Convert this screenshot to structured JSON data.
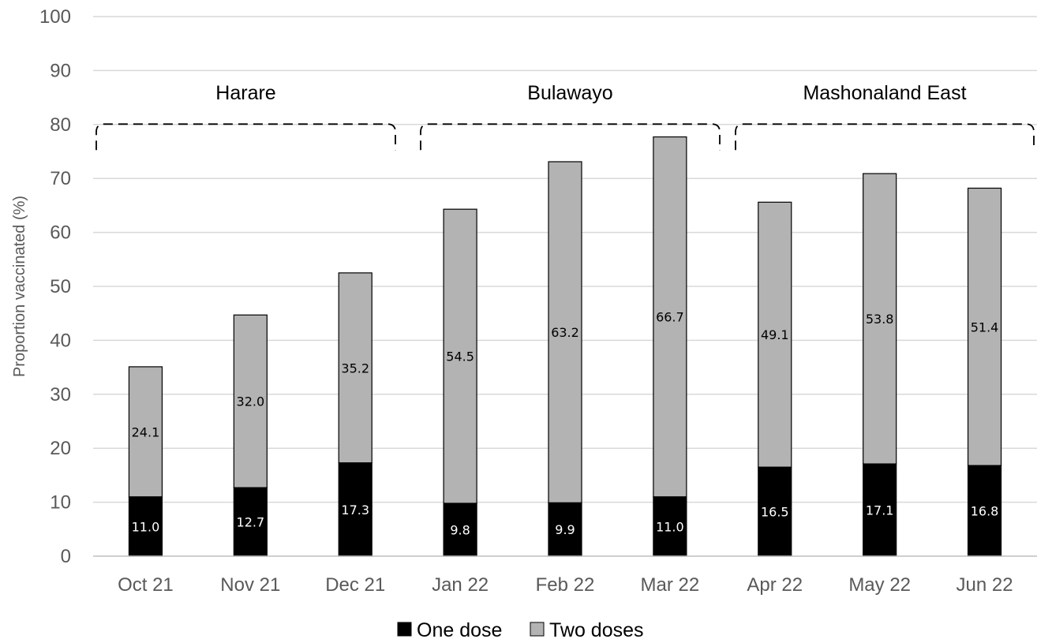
{
  "chart_data": {
    "type": "bar",
    "stacked": true,
    "categories": [
      "Oct 21",
      "Nov 21",
      "Dec 21",
      "Jan 22",
      "Feb 22",
      "Mar 22",
      "Apr 22",
      "May 22",
      "Jun 22"
    ],
    "series": [
      {
        "name": "One dose",
        "values": [
          11.0,
          12.7,
          17.3,
          9.8,
          9.9,
          11.0,
          16.5,
          17.1,
          16.8
        ],
        "color": "#000000",
        "label_color": "#ffffff"
      },
      {
        "name": "Two doses",
        "values": [
          24.1,
          32.0,
          35.2,
          54.5,
          63.2,
          66.7,
          49.1,
          53.8,
          51.4
        ],
        "color": "#b3b3b3",
        "label_color": "#000000"
      }
    ],
    "ylabel": "Proportion vaccinated (%)",
    "xlabel": "",
    "ylim": [
      0,
      100
    ],
    "yticks": [
      0,
      10,
      20,
      30,
      40,
      50,
      60,
      70,
      80,
      90,
      100
    ],
    "grid": true,
    "legend_position": "bottom",
    "groups": [
      {
        "label": "Harare",
        "start": 0,
        "end": 2
      },
      {
        "label": "Bulawayo",
        "start": 3,
        "end": 5
      },
      {
        "label": "Mashonaland East",
        "start": 6,
        "end": 8
      }
    ],
    "group_bracket_value": 80
  }
}
